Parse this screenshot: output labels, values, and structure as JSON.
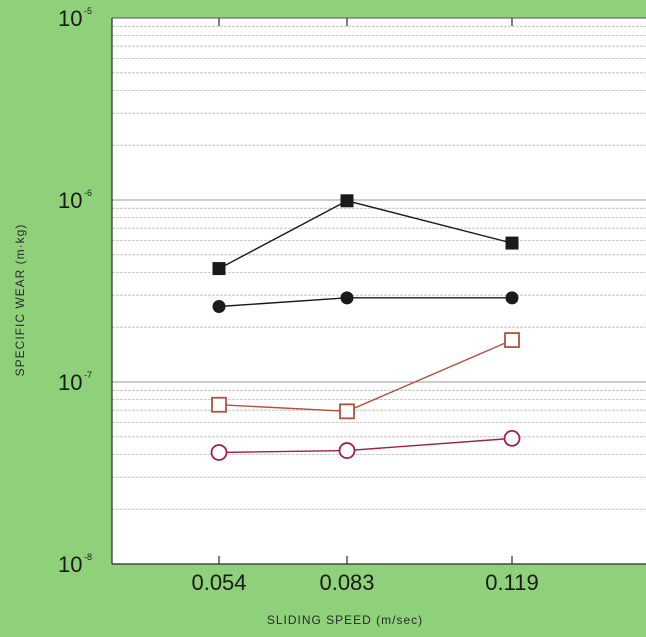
{
  "chart_data": {
    "type": "line",
    "title": "",
    "xlabel": "SLIDING SPEED (m/sec)",
    "ylabel": "SPECIFIC WEAR (m·kg)",
    "categories": [
      "0.054",
      "0.083",
      "0.119"
    ],
    "x": [
      0.054,
      0.083,
      0.119
    ],
    "y_scale": "log",
    "ylim": [
      1e-08,
      1e-05
    ],
    "y_ticks": [
      {
        "value": 1e-08,
        "mantissa": "10",
        "exponent": "-8"
      },
      {
        "value": 1e-07,
        "mantissa": "10",
        "exponent": "-7"
      },
      {
        "value": 1e-06,
        "mantissa": "10",
        "exponent": "-6"
      },
      {
        "value": 1e-05,
        "mantissa": "10",
        "exponent": "-5"
      }
    ],
    "grid": true,
    "series": [
      {
        "values": [
          4.2e-07,
          9.9e-07,
          5.8e-07
        ],
        "marker": "filled-square",
        "color": "#1a1a1a"
      },
      {
        "values": [
          2.6e-07,
          2.9e-07,
          2.9e-07
        ],
        "marker": "filled-circle",
        "color": "#1a1a1a"
      },
      {
        "values": [
          7.5e-08,
          6.9e-08,
          1.7e-07
        ],
        "marker": "open-square",
        "color": "#b5503a"
      },
      {
        "values": [
          4.1e-08,
          4.2e-08,
          4.9e-08
        ],
        "marker": "open-circle",
        "color": "#a0204a"
      }
    ]
  },
  "colors": {
    "background": "#8fd17a",
    "plot_area": "#ffffff",
    "grid": "#b4b4b4",
    "frame": "#2a2a2a"
  }
}
